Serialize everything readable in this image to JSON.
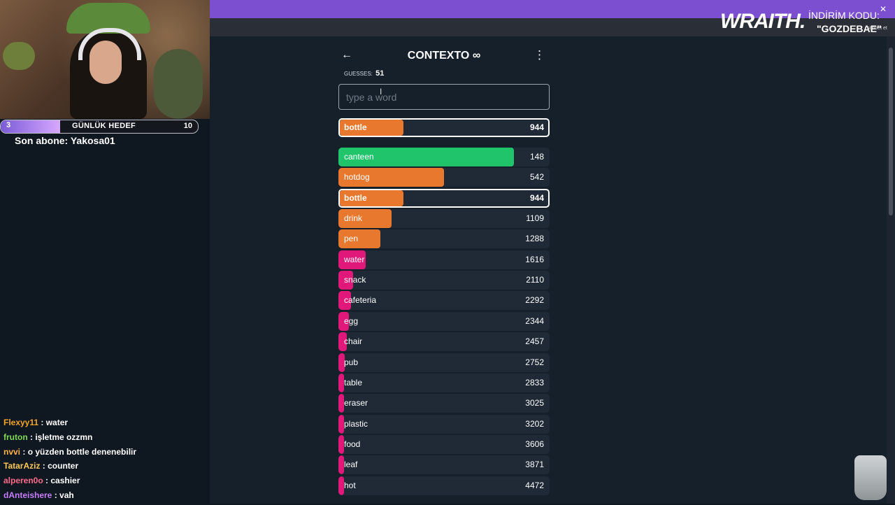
{
  "stream": {
    "goal": {
      "start": "3",
      "label": "GÜNLÜK HEDEF",
      "end": "10",
      "progress": 0.3
    },
    "last_sub": "Son abone: Yakosa01",
    "chat": [
      {
        "user": "Flexyy11",
        "color": "#f5a623",
        "message": "water"
      },
      {
        "user": "fruton",
        "color": "#7ed957",
        "message": "işletme ozzmn"
      },
      {
        "user": "nvvi",
        "color": "#ffb347",
        "message": "o yüzden bottle denenebilir"
      },
      {
        "user": "TatarAziz",
        "color": "#ffc857",
        "message": "counter"
      },
      {
        "user": "alperen0o",
        "color": "#ff6b8b",
        "message": "cashier"
      },
      {
        "user": "dAnteishere",
        "color": "#c77dff",
        "message": "vah"
      }
    ],
    "sponsor": {
      "logo": "WRAITH.",
      "code_label": "İNDİRİM KODU:",
      "code": "\"GOZDEBAE\"",
      "small": "sohbet et"
    }
  },
  "app": {
    "title": "CONTEXTO ∞",
    "guesses_label": "GUESSES:",
    "guesses_count": "51",
    "input_placeholder": "type a word",
    "current": {
      "word": "bottle",
      "rank": "944",
      "color": "#e8782e",
      "fill": 0.3
    },
    "guesses": [
      {
        "word": "canteen",
        "rank": "148",
        "color": "#1fc46b",
        "fill": 0.83,
        "highlight": false
      },
      {
        "word": "hotdog",
        "rank": "542",
        "color": "#e8782e",
        "fill": 0.5,
        "highlight": false
      },
      {
        "word": "bottle",
        "rank": "944",
        "color": "#e8782e",
        "fill": 0.3,
        "highlight": true
      },
      {
        "word": "drink",
        "rank": "1109",
        "color": "#e8782e",
        "fill": 0.25,
        "highlight": false
      },
      {
        "word": "pen",
        "rank": "1288",
        "color": "#e8782e",
        "fill": 0.2,
        "highlight": false
      },
      {
        "word": "water",
        "rank": "1616",
        "color": "#e0187a",
        "fill": 0.13,
        "highlight": false
      },
      {
        "word": "snack",
        "rank": "2110",
        "color": "#e0187a",
        "fill": 0.07,
        "highlight": false
      },
      {
        "word": "cafeteria",
        "rank": "2292",
        "color": "#e0187a",
        "fill": 0.06,
        "highlight": false
      },
      {
        "word": "egg",
        "rank": "2344",
        "color": "#e0187a",
        "fill": 0.05,
        "highlight": false
      },
      {
        "word": "chair",
        "rank": "2457",
        "color": "#e0187a",
        "fill": 0.04,
        "highlight": false
      },
      {
        "word": "pub",
        "rank": "2752",
        "color": "#e0187a",
        "fill": 0.03,
        "highlight": false
      },
      {
        "word": "table",
        "rank": "2833",
        "color": "#e0187a",
        "fill": 0.025,
        "highlight": false
      },
      {
        "word": "eraser",
        "rank": "3025",
        "color": "#e0187a",
        "fill": 0.02,
        "highlight": false
      },
      {
        "word": "plastic",
        "rank": "3202",
        "color": "#e0187a",
        "fill": 0.02,
        "highlight": false
      },
      {
        "word": "food",
        "rank": "3606",
        "color": "#e0187a",
        "fill": 0.015,
        "highlight": false
      },
      {
        "word": "leaf",
        "rank": "3871",
        "color": "#e0187a",
        "fill": 0.015,
        "highlight": false
      },
      {
        "word": "hot",
        "rank": "4472",
        "color": "#e0187a",
        "fill": 0.01,
        "highlight": false
      }
    ]
  },
  "icons": {
    "back": "back-arrow-icon",
    "menu": "kebab-menu-icon"
  }
}
